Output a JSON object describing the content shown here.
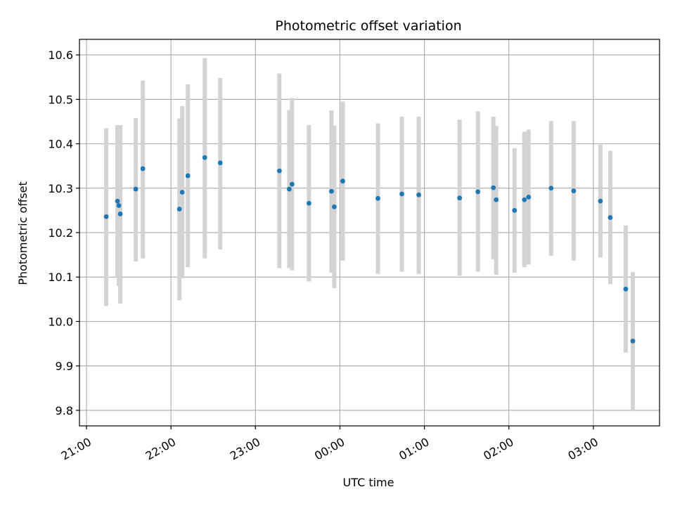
{
  "chart_data": {
    "type": "scatter",
    "title": "Photometric offset variation",
    "xlabel": "UTC time",
    "ylabel": "Photometric offset",
    "x_tick_labels": [
      "21:00",
      "22:00",
      "23:00",
      "00:00",
      "01:00",
      "02:00",
      "03:00"
    ],
    "x_ticks": [
      "21:00",
      "22:00",
      "23:00",
      "24:00",
      "25:00",
      "26:00",
      "27:00"
    ],
    "x_range": [
      "20:55",
      "27:47"
    ],
    "y_ticks": [
      9.8,
      9.9,
      10.0,
      10.1,
      10.2,
      10.3,
      10.4,
      10.5,
      10.6
    ],
    "y_tick_labels": [
      "9.8",
      "9.9",
      "10.0",
      "10.1",
      "10.2",
      "10.3",
      "10.4",
      "10.5",
      "10.6"
    ],
    "ylim": [
      9.765,
      10.635
    ],
    "grid": true,
    "colors": {
      "point": "#1f77b4",
      "errorbar": "#d3d3d3",
      "grid": "#b0b0b0"
    },
    "x_note": "times after midnight expressed as hours beyond 24 (e.g. 25:00 = 01:00 next day)",
    "points": [
      {
        "t": "21:14",
        "y": 10.236,
        "lo": 10.035,
        "hi": 10.435
      },
      {
        "t": "21:22",
        "y": 10.271,
        "lo": 10.1,
        "hi": 10.442
      },
      {
        "t": "21:23",
        "y": 10.261,
        "lo": 10.08,
        "hi": 10.442
      },
      {
        "t": "21:24",
        "y": 10.242,
        "lo": 10.04,
        "hi": 10.442
      },
      {
        "t": "21:35",
        "y": 10.298,
        "lo": 10.135,
        "hi": 10.458
      },
      {
        "t": "21:40",
        "y": 10.344,
        "lo": 10.142,
        "hi": 10.542
      },
      {
        "t": "22:06",
        "y": 10.253,
        "lo": 10.048,
        "hi": 10.457
      },
      {
        "t": "22:08",
        "y": 10.291,
        "lo": 10.097,
        "hi": 10.485
      },
      {
        "t": "22:12",
        "y": 10.328,
        "lo": 10.122,
        "hi": 10.534
      },
      {
        "t": "22:24",
        "y": 10.369,
        "lo": 10.142,
        "hi": 10.593
      },
      {
        "t": "22:35",
        "y": 10.357,
        "lo": 10.162,
        "hi": 10.548
      },
      {
        "t": "23:17",
        "y": 10.339,
        "lo": 10.12,
        "hi": 10.558
      },
      {
        "t": "23:24",
        "y": 10.298,
        "lo": 10.12,
        "hi": 10.476
      },
      {
        "t": "23:26",
        "y": 10.309,
        "lo": 10.115,
        "hi": 10.503
      },
      {
        "t": "23:38",
        "y": 10.266,
        "lo": 10.09,
        "hi": 10.442
      },
      {
        "t": "23:54",
        "y": 10.293,
        "lo": 10.11,
        "hi": 10.475
      },
      {
        "t": "23:56",
        "y": 10.258,
        "lo": 10.075,
        "hi": 10.441
      },
      {
        "t": "24:02",
        "y": 10.316,
        "lo": 10.137,
        "hi": 10.495
      },
      {
        "t": "24:27",
        "y": 10.277,
        "lo": 10.107,
        "hi": 10.446
      },
      {
        "t": "24:44",
        "y": 10.287,
        "lo": 10.112,
        "hi": 10.461
      },
      {
        "t": "24:56",
        "y": 10.285,
        "lo": 10.107,
        "hi": 10.461
      },
      {
        "t": "25:25",
        "y": 10.278,
        "lo": 10.103,
        "hi": 10.454
      },
      {
        "t": "25:38",
        "y": 10.292,
        "lo": 10.112,
        "hi": 10.473
      },
      {
        "t": "25:49",
        "y": 10.301,
        "lo": 10.14,
        "hi": 10.461
      },
      {
        "t": "25:51",
        "y": 10.274,
        "lo": 10.105,
        "hi": 10.44
      },
      {
        "t": "26:04",
        "y": 10.25,
        "lo": 10.11,
        "hi": 10.39
      },
      {
        "t": "26:11",
        "y": 10.274,
        "lo": 10.122,
        "hi": 10.427
      },
      {
        "t": "26:14",
        "y": 10.28,
        "lo": 10.128,
        "hi": 10.432
      },
      {
        "t": "26:30",
        "y": 10.3,
        "lo": 10.148,
        "hi": 10.451
      },
      {
        "t": "26:46",
        "y": 10.294,
        "lo": 10.137,
        "hi": 10.451
      },
      {
        "t": "27:05",
        "y": 10.271,
        "lo": 10.144,
        "hi": 10.398
      },
      {
        "t": "27:12",
        "y": 10.234,
        "lo": 10.084,
        "hi": 10.384
      },
      {
        "t": "27:23",
        "y": 10.073,
        "lo": 9.93,
        "hi": 10.216
      },
      {
        "t": "27:28",
        "y": 9.956,
        "lo": 9.8,
        "hi": 10.111
      }
    ]
  }
}
